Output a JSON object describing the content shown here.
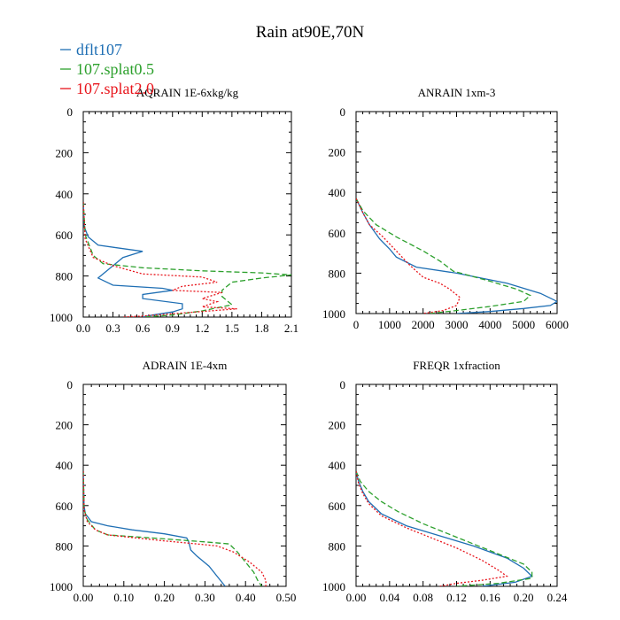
{
  "title": "Rain at90E,70N",
  "colors": {
    "dflt107": "#1f6fb4",
    "splat05": "#2ca02c",
    "splat20": "#e8141b"
  },
  "legend": [
    {
      "label": "dflt107",
      "color": "#1f6fb4",
      "dash": "none"
    },
    {
      "label": "107.splat0.5",
      "color": "#2ca02c",
      "dash": "6,3"
    },
    {
      "label": "107.splat2.0",
      "color": "#e8141b",
      "dash": "2,2"
    }
  ],
  "chart_data": [
    {
      "type": "line",
      "title": "AQRAIN  1E-6xkg/kg",
      "xlim": [
        0,
        2.1
      ],
      "ylim": [
        1000,
        0
      ],
      "xticks": [
        "0.0",
        "0.3",
        "0.6",
        "0.9",
        "1.2",
        "1.5",
        "1.8",
        "2.1"
      ],
      "yticks": [
        "0",
        "200",
        "400",
        "600",
        "800",
        "1000"
      ],
      "series": [
        {
          "name": "dflt107",
          "color": "#1f6fb4",
          "dash": "none",
          "points": [
            [
              0,
              440
            ],
            [
              0.01,
              560
            ],
            [
              0.05,
              610
            ],
            [
              0.15,
              650
            ],
            [
              0.6,
              680
            ],
            [
              0.4,
              710
            ],
            [
              0.3,
              750
            ],
            [
              0.15,
              810
            ],
            [
              0.3,
              845
            ],
            [
              0.8,
              860
            ],
            [
              0.9,
              870
            ],
            [
              0.6,
              890
            ],
            [
              0.6,
              910
            ],
            [
              1.0,
              935
            ],
            [
              1.0,
              960
            ],
            [
              0.9,
              975
            ],
            [
              0.7,
              990
            ],
            [
              0.6,
              1000
            ]
          ]
        },
        {
          "name": "107.splat0.5",
          "color": "#2ca02c",
          "dash": "6,3",
          "points": [
            [
              0,
              440
            ],
            [
              0.02,
              600
            ],
            [
              0.1,
              700
            ],
            [
              0.2,
              740
            ],
            [
              0.6,
              760
            ],
            [
              1.2,
              775
            ],
            [
              1.8,
              785
            ],
            [
              2.1,
              795
            ],
            [
              1.8,
              810
            ],
            [
              1.5,
              830
            ],
            [
              1.4,
              870
            ],
            [
              1.4,
              900
            ],
            [
              1.5,
              940
            ],
            [
              1.2,
              970
            ],
            [
              0.9,
              990
            ],
            [
              0.6,
              1000
            ]
          ]
        },
        {
          "name": "107.splat2.0",
          "color": "#e8141b",
          "dash": "2,2",
          "points": [
            [
              0,
              440
            ],
            [
              0.02,
              620
            ],
            [
              0.1,
              710
            ],
            [
              0.3,
              750
            ],
            [
              0.6,
              790
            ],
            [
              1.2,
              805
            ],
            [
              1.35,
              830
            ],
            [
              1.0,
              850
            ],
            [
              0.9,
              870
            ],
            [
              1.4,
              880
            ],
            [
              1.2,
              910
            ],
            [
              1.35,
              925
            ],
            [
              1.2,
              950
            ],
            [
              1.55,
              960
            ],
            [
              1.0,
              980
            ],
            [
              0.6,
              995
            ],
            [
              0.4,
              1000
            ]
          ]
        }
      ]
    },
    {
      "type": "line",
      "title": "ANRAIN  1xm-3",
      "xlim": [
        0,
        6000
      ],
      "ylim": [
        1000,
        0
      ],
      "xticks": [
        "0",
        "1000",
        "2000",
        "3000",
        "4000",
        "5000",
        "6000"
      ],
      "yticks": [
        "0",
        "200",
        "400",
        "600",
        "800",
        "1000"
      ],
      "series": [
        {
          "name": "dflt107",
          "color": "#1f6fb4",
          "dash": "none",
          "points": [
            [
              0,
              430
            ],
            [
              200,
              500
            ],
            [
              400,
              560
            ],
            [
              700,
              630
            ],
            [
              1000,
              680
            ],
            [
              1200,
              720
            ],
            [
              1800,
              770
            ],
            [
              3000,
              800
            ],
            [
              4500,
              850
            ],
            [
              5500,
              900
            ],
            [
              6000,
              940
            ],
            [
              5800,
              960
            ],
            [
              5000,
              975
            ],
            [
              4000,
              990
            ],
            [
              3000,
              1000
            ]
          ]
        },
        {
          "name": "107.splat0.5",
          "color": "#2ca02c",
          "dash": "6,3",
          "points": [
            [
              0,
              430
            ],
            [
              200,
              490
            ],
            [
              600,
              560
            ],
            [
              1200,
              620
            ],
            [
              2000,
              690
            ],
            [
              2500,
              740
            ],
            [
              2900,
              790
            ],
            [
              4000,
              840
            ],
            [
              4800,
              880
            ],
            [
              5200,
              910
            ],
            [
              5000,
              940
            ],
            [
              4000,
              965
            ],
            [
              3000,
              985
            ],
            [
              2200,
              1000
            ]
          ]
        },
        {
          "name": "107.splat2.0",
          "color": "#e8141b",
          "dash": "2,2",
          "points": [
            [
              0,
              430
            ],
            [
              200,
              500
            ],
            [
              400,
              560
            ],
            [
              800,
              620
            ],
            [
              1200,
              690
            ],
            [
              1600,
              760
            ],
            [
              2000,
              820
            ],
            [
              2500,
              850
            ],
            [
              2800,
              880
            ],
            [
              3100,
              920
            ],
            [
              3000,
              960
            ],
            [
              2600,
              985
            ],
            [
              2000,
              1000
            ]
          ]
        }
      ]
    },
    {
      "type": "line",
      "title": "ADRAIN  1E-4xm",
      "xlim": [
        0,
        0.5
      ],
      "ylim": [
        1000,
        0
      ],
      "xticks": [
        "0.00",
        "0.10",
        "0.20",
        "0.30",
        "0.40",
        "0.50"
      ],
      "yticks": [
        "0",
        "200",
        "400",
        "600",
        "800",
        "1000"
      ],
      "series": [
        {
          "name": "dflt107",
          "color": "#1f6fb4",
          "dash": "none",
          "points": [
            [
              0,
              430
            ],
            [
              0.002,
              600
            ],
            [
              0.005,
              640
            ],
            [
              0.02,
              680
            ],
            [
              0.06,
              700
            ],
            [
              0.12,
              720
            ],
            [
              0.2,
              740
            ],
            [
              0.255,
              760
            ],
            [
              0.26,
              780
            ],
            [
              0.265,
              820
            ],
            [
              0.28,
              850
            ],
            [
              0.31,
              900
            ],
            [
              0.33,
              950
            ],
            [
              0.35,
              1000
            ]
          ]
        },
        {
          "name": "107.splat0.5",
          "color": "#2ca02c",
          "dash": "6,3",
          "points": [
            [
              0,
              430
            ],
            [
              0.002,
              620
            ],
            [
              0.01,
              670
            ],
            [
              0.03,
              720
            ],
            [
              0.06,
              745
            ],
            [
              0.2,
              765
            ],
            [
              0.3,
              780
            ],
            [
              0.36,
              790
            ],
            [
              0.38,
              830
            ],
            [
              0.4,
              880
            ],
            [
              0.42,
              930
            ],
            [
              0.43,
              970
            ],
            [
              0.44,
              1000
            ]
          ]
        },
        {
          "name": "107.splat2.0",
          "color": "#e8141b",
          "dash": "2,2",
          "points": [
            [
              0,
              430
            ],
            [
              0.002,
              620
            ],
            [
              0.01,
              680
            ],
            [
              0.03,
              720
            ],
            [
              0.06,
              745
            ],
            [
              0.2,
              775
            ],
            [
              0.28,
              790
            ],
            [
              0.33,
              800
            ],
            [
              0.37,
              830
            ],
            [
              0.41,
              880
            ],
            [
              0.44,
              930
            ],
            [
              0.45,
              970
            ],
            [
              0.45,
              1000
            ]
          ]
        }
      ]
    },
    {
      "type": "line",
      "title": "FREQR  1xfraction",
      "xlim": [
        0,
        0.24
      ],
      "ylim": [
        1000,
        0
      ],
      "xticks": [
        "0.00",
        "0.04",
        "0.08",
        "0.12",
        "0.16",
        "0.20",
        "0.24"
      ],
      "yticks": [
        "0",
        "200",
        "400",
        "600",
        "800",
        "1000"
      ],
      "series": [
        {
          "name": "dflt107",
          "color": "#1f6fb4",
          "dash": "none",
          "points": [
            [
              0,
              430
            ],
            [
              0.003,
              480
            ],
            [
              0.008,
              530
            ],
            [
              0.015,
              580
            ],
            [
              0.03,
              640
            ],
            [
              0.06,
              700
            ],
            [
              0.1,
              750
            ],
            [
              0.14,
              800
            ],
            [
              0.18,
              860
            ],
            [
              0.2,
              910
            ],
            [
              0.21,
              950
            ],
            [
              0.19,
              980
            ],
            [
              0.15,
              1000
            ]
          ]
        },
        {
          "name": "107.splat0.5",
          "color": "#2ca02c",
          "dash": "6,3",
          "points": [
            [
              0,
              430
            ],
            [
              0.005,
              480
            ],
            [
              0.015,
              530
            ],
            [
              0.03,
              580
            ],
            [
              0.05,
              630
            ],
            [
              0.08,
              690
            ],
            [
              0.11,
              740
            ],
            [
              0.14,
              790
            ],
            [
              0.17,
              840
            ],
            [
              0.2,
              890
            ],
            [
              0.21,
              930
            ],
            [
              0.21,
              960
            ],
            [
              0.17,
              985
            ],
            [
              0.12,
              1000
            ]
          ]
        },
        {
          "name": "107.splat2.0",
          "color": "#e8141b",
          "dash": "2,2",
          "points": [
            [
              0,
              430
            ],
            [
              0.003,
              490
            ],
            [
              0.008,
              540
            ],
            [
              0.015,
              590
            ],
            [
              0.03,
              650
            ],
            [
              0.06,
              710
            ],
            [
              0.09,
              760
            ],
            [
              0.12,
              810
            ],
            [
              0.15,
              870
            ],
            [
              0.17,
              920
            ],
            [
              0.18,
              950
            ],
            [
              0.15,
              970
            ],
            [
              0.12,
              985
            ],
            [
              0.1,
              1000
            ]
          ]
        }
      ]
    }
  ]
}
